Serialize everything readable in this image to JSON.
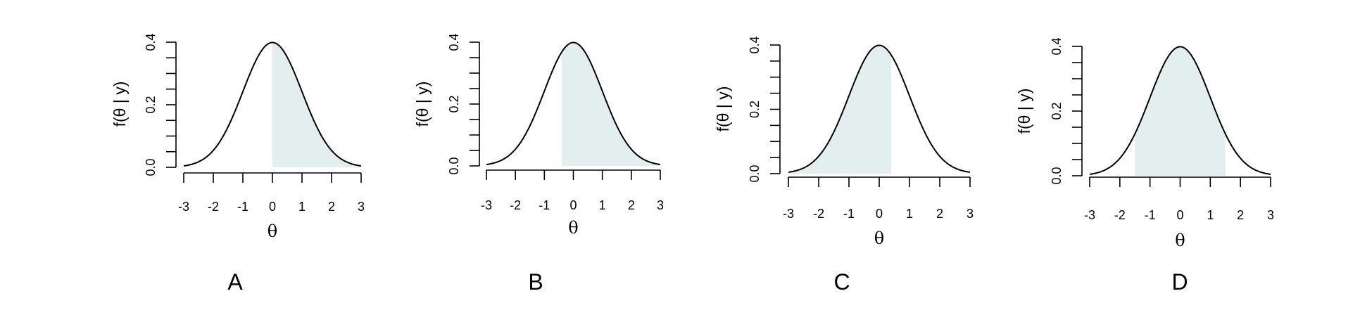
{
  "chart_data": [
    {
      "type": "area",
      "panel_label": "A",
      "xlabel": "θ",
      "ylabel": "f(θ | y)",
      "xlim": [
        -3,
        3
      ],
      "ylim": [
        0,
        0.4
      ],
      "x_ticks": [
        -3,
        -2,
        -1,
        0,
        1,
        2,
        3
      ],
      "y_ticks": [
        0.0,
        0.2,
        0.4
      ],
      "y_tick_labels": [
        "0.0",
        "0.2",
        "0.4"
      ],
      "curve": "standard normal density",
      "shaded_from": 0,
      "shaded_to": 3,
      "shade_color": "#e3eeee"
    },
    {
      "type": "area",
      "panel_label": "B",
      "xlabel": "θ",
      "ylabel": "f(θ | y)",
      "xlim": [
        -3,
        3
      ],
      "ylim": [
        0,
        0.4
      ],
      "x_ticks": [
        -3,
        -2,
        -1,
        0,
        1,
        2,
        3
      ],
      "y_ticks": [
        0.0,
        0.2,
        0.4
      ],
      "y_tick_labels": [
        "0.0",
        "0.2",
        "0.4"
      ],
      "curve": "standard normal density",
      "shaded_from": -0.4,
      "shaded_to": 3,
      "shade_color": "#e3eeee"
    },
    {
      "type": "area",
      "panel_label": "C",
      "xlabel": "θ",
      "ylabel": "f(θ | y)",
      "xlim": [
        -3,
        3
      ],
      "ylim": [
        0,
        0.4
      ],
      "x_ticks": [
        -3,
        -2,
        -1,
        0,
        1,
        2,
        3
      ],
      "y_ticks": [
        0.0,
        0.2,
        0.4
      ],
      "y_tick_labels": [
        "0.0",
        "0.2",
        "0.4"
      ],
      "curve": "standard normal density",
      "shaded_from": -3,
      "shaded_to": 0.4,
      "shade_color": "#e3eeee"
    },
    {
      "type": "area",
      "panel_label": "D",
      "xlabel": "θ",
      "ylabel": "f(θ | y)",
      "xlim": [
        -3,
        3
      ],
      "ylim": [
        0,
        0.4
      ],
      "x_ticks": [
        -3,
        -2,
        -1,
        0,
        1,
        2,
        3
      ],
      "y_ticks": [
        0.0,
        0.2,
        0.4
      ],
      "y_tick_labels": [
        "0.0",
        "0.2",
        "0.4"
      ],
      "curve": "standard normal density",
      "shaded_from": -1.5,
      "shaded_to": 1.5,
      "shade_color": "#e3eeee"
    }
  ]
}
